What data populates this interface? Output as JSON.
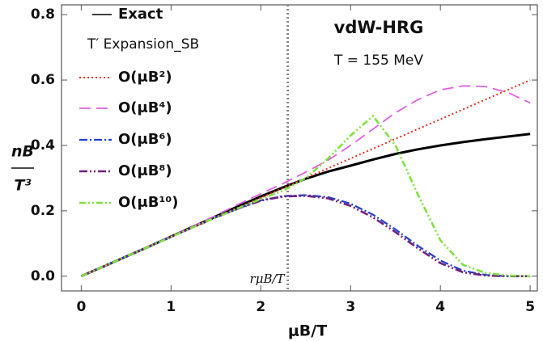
{
  "chart_data": {
    "type": "line",
    "title": "vdW-HRG",
    "subtitle": "T = 155 MeV",
    "xlabel": "μB/T",
    "ylabel_top": "nB",
    "ylabel_bottom": "T³",
    "legend_title": "T′ Expansion_SB",
    "vline": {
      "x": 2.3,
      "label": "rμB/T"
    },
    "x": [
      0,
      0.25,
      0.5,
      0.75,
      1,
      1.25,
      1.5,
      1.75,
      2,
      2.25,
      2.5,
      2.75,
      3,
      3.25,
      3.5,
      3.75,
      4,
      4.25,
      4.5,
      4.75,
      5
    ],
    "series": [
      {
        "name": "Exact",
        "color": "#000000",
        "values": [
          0,
          0.03,
          0.06,
          0.09,
          0.121,
          0.152,
          0.183,
          0.214,
          0.244,
          0.272,
          0.298,
          0.32,
          0.338,
          0.357,
          0.374,
          0.388,
          0.4,
          0.41,
          0.419,
          0.427,
          0.435
        ]
      },
      {
        "name": "O(μB²)",
        "color": "#e03020",
        "values": [
          0,
          0.03,
          0.06,
          0.09,
          0.12,
          0.15,
          0.18,
          0.21,
          0.24,
          0.27,
          0.3,
          0.33,
          0.36,
          0.39,
          0.42,
          0.45,
          0.48,
          0.51,
          0.54,
          0.57,
          0.6
        ]
      },
      {
        "name": "O(μB⁴)",
        "color": "#e060e0",
        "values": [
          0,
          0.03,
          0.06,
          0.091,
          0.122,
          0.153,
          0.186,
          0.22,
          0.252,
          0.284,
          0.318,
          0.355,
          0.4,
          0.45,
          0.5,
          0.54,
          0.57,
          0.582,
          0.58,
          0.562,
          0.53
        ]
      },
      {
        "name": "O(μB⁶)",
        "color": "#2040d0",
        "values": [
          0,
          0.03,
          0.06,
          0.09,
          0.12,
          0.15,
          0.18,
          0.207,
          0.232,
          0.245,
          0.248,
          0.242,
          0.222,
          0.188,
          0.143,
          0.093,
          0.048,
          0.017,
          0.004,
          0,
          0
        ]
      },
      {
        "name": "O(μB⁸)",
        "color": "#702080",
        "values": [
          0,
          0.03,
          0.06,
          0.09,
          0.12,
          0.15,
          0.18,
          0.207,
          0.231,
          0.244,
          0.246,
          0.238,
          0.215,
          0.18,
          0.135,
          0.085,
          0.04,
          0.012,
          0.002,
          0,
          0
        ]
      },
      {
        "name": "O(μB¹⁰)",
        "color": "#80e040",
        "values": [
          0,
          0.03,
          0.06,
          0.09,
          0.12,
          0.15,
          0.18,
          0.208,
          0.236,
          0.262,
          0.3,
          0.36,
          0.43,
          0.49,
          0.4,
          0.25,
          0.11,
          0.035,
          0.01,
          0.002,
          0
        ]
      }
    ],
    "xlim": [
      -0.22,
      5.08
    ],
    "ylim": [
      -0.045,
      0.83
    ],
    "xticks": [
      0,
      1,
      2,
      3,
      4,
      5
    ],
    "yticks": [
      {
        "value": 0,
        "label": "0.0"
      },
      0.2,
      0.4,
      0.6,
      0.8
    ]
  }
}
